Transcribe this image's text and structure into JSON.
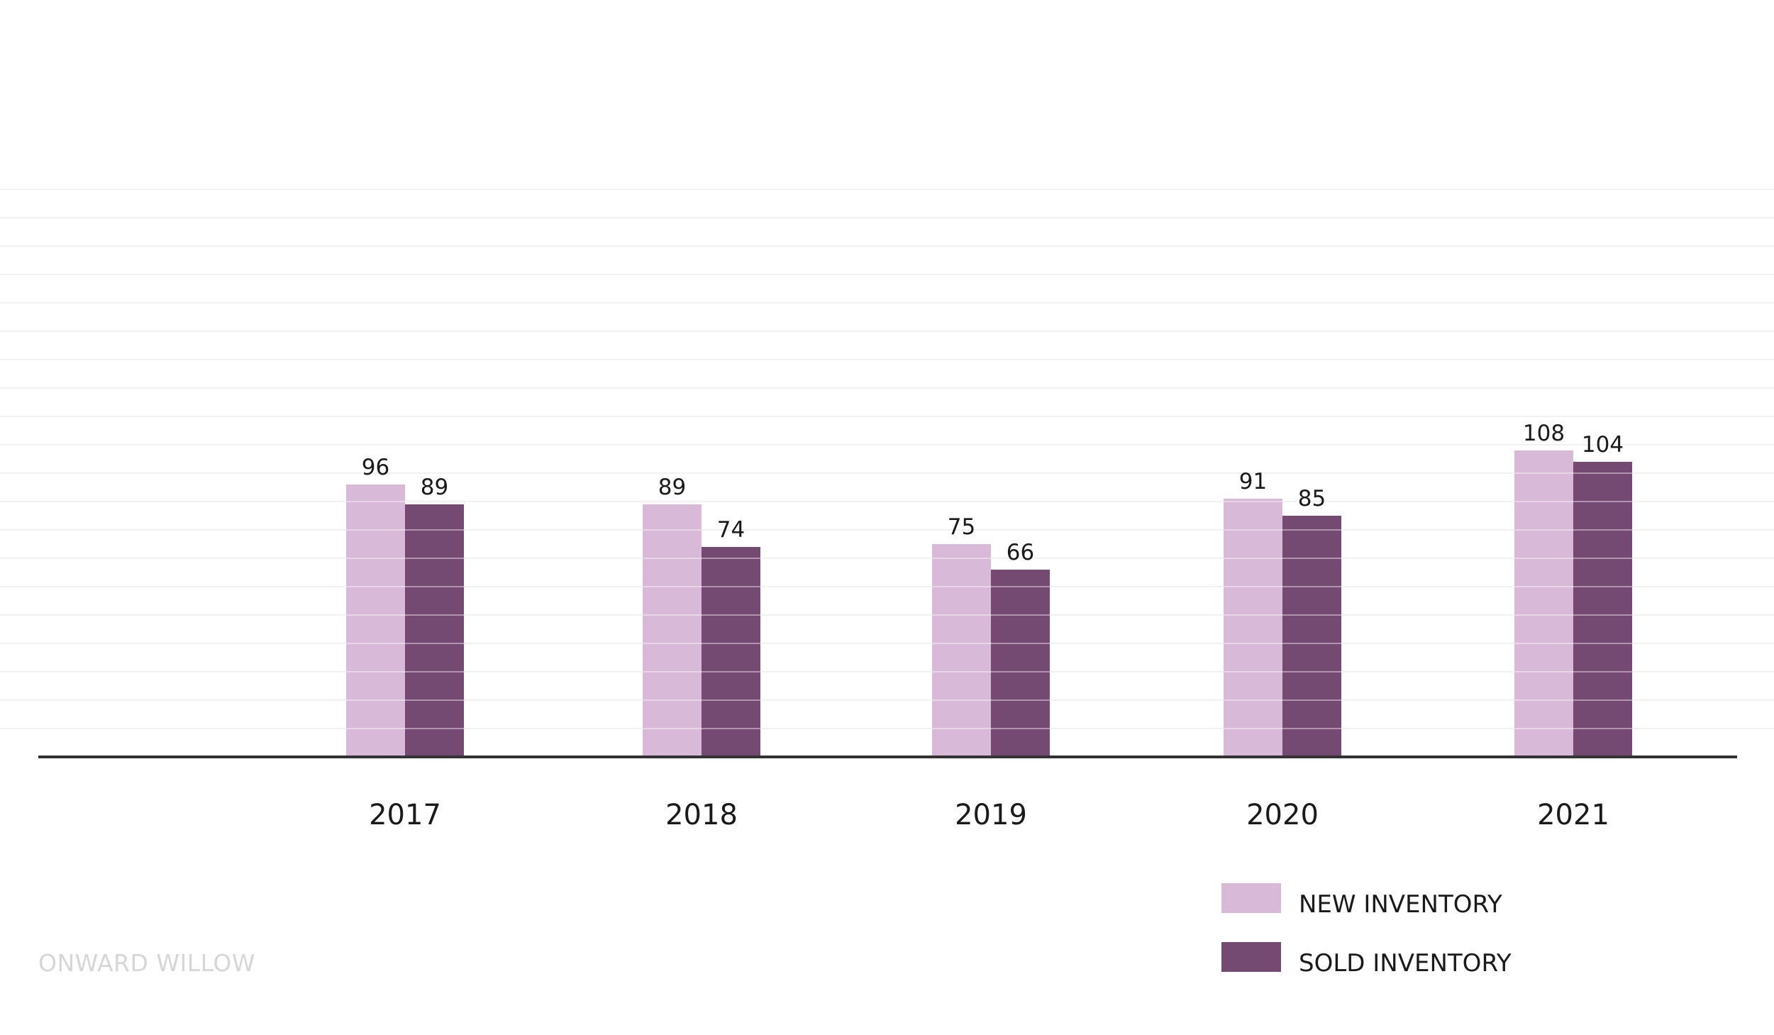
{
  "chart_data": {
    "type": "bar",
    "title": "",
    "xlabel": "",
    "ylabel": "",
    "categories": [
      "2017",
      "2018",
      "2019",
      "2020",
      "2021"
    ],
    "series": [
      {
        "name": "NEW INVENTORY",
        "values": [
          96,
          89,
          75,
          91,
          108
        ],
        "color": "#d8b9d8"
      },
      {
        "name": "SOLD INVENTORY",
        "values": [
          89,
          74,
          66,
          85,
          104
        ],
        "color": "#744a72"
      }
    ],
    "ylim": [
      0,
      200
    ],
    "grid": true,
    "axis_color": "#333333",
    "legend": "bottom-right"
  },
  "watermark": "ONWARD WILLOW"
}
